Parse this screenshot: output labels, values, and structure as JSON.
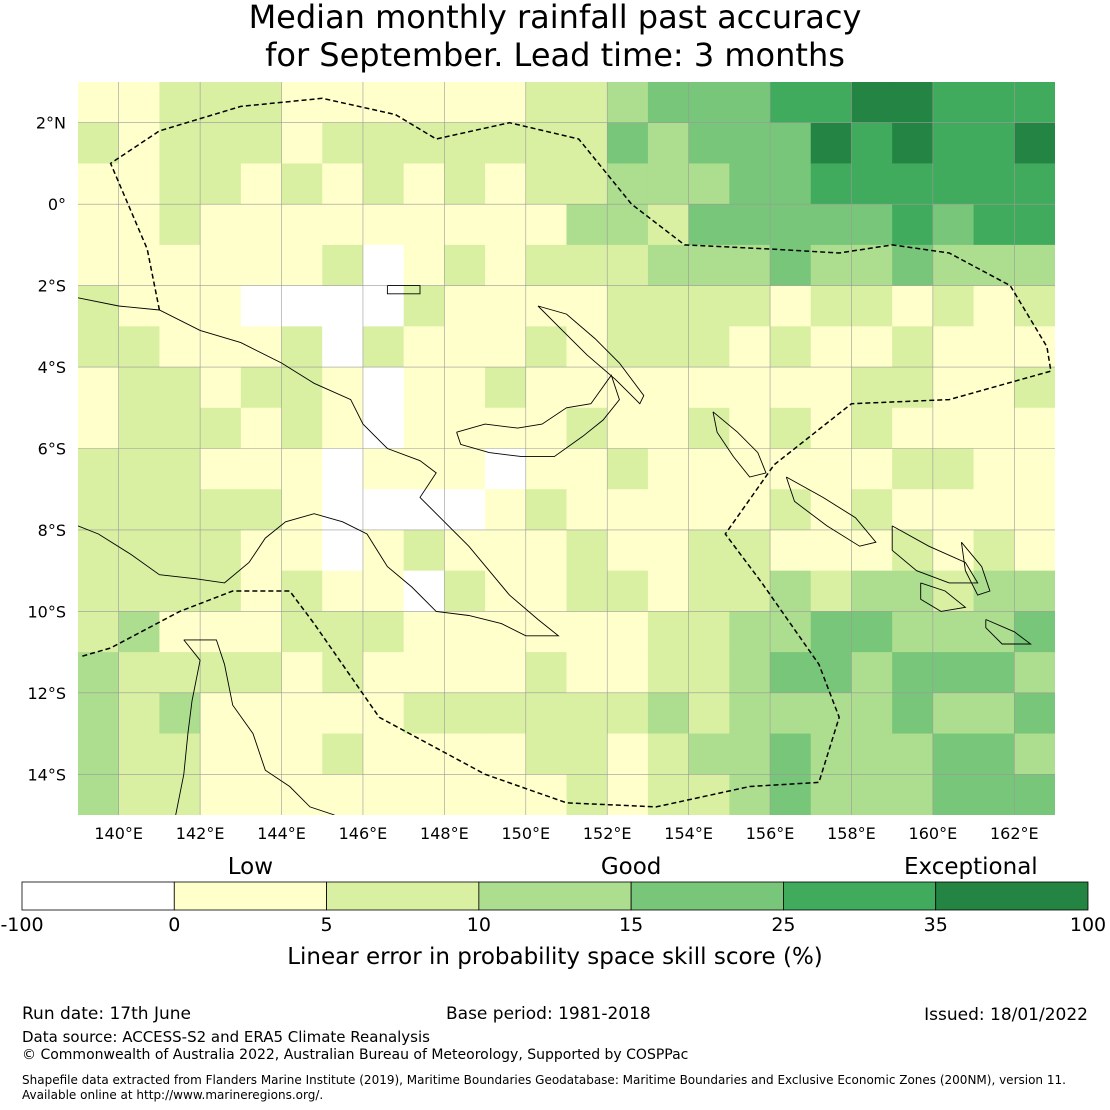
{
  "title_line1": "Median monthly rainfall past accuracy",
  "title_line2": "for September. Lead time: 3 months",
  "map": {
    "lon_min": 139,
    "lon_max": 163,
    "lat_min": -15,
    "lat_max": 3,
    "x_ticks": [
      {
        "value": 140,
        "label": "140°E"
      },
      {
        "value": 142,
        "label": "142°E"
      },
      {
        "value": 144,
        "label": "144°E"
      },
      {
        "value": 146,
        "label": "146°E"
      },
      {
        "value": 148,
        "label": "148°E"
      },
      {
        "value": 150,
        "label": "150°E"
      },
      {
        "value": 152,
        "label": "152°E"
      },
      {
        "value": 154,
        "label": "154°E"
      },
      {
        "value": 156,
        "label": "156°E"
      },
      {
        "value": 158,
        "label": "158°E"
      },
      {
        "value": 160,
        "label": "160°E"
      },
      {
        "value": 162,
        "label": "162°E"
      }
    ],
    "y_ticks": [
      {
        "value": 2,
        "label": "2°N"
      },
      {
        "value": 0,
        "label": "0°"
      },
      {
        "value": -2,
        "label": "2°S"
      },
      {
        "value": -4,
        "label": "4°S"
      },
      {
        "value": -6,
        "label": "6°S"
      },
      {
        "value": -8,
        "label": "8°S"
      },
      {
        "value": -10,
        "label": "10°S"
      },
      {
        "value": -12,
        "label": "12°S"
      },
      {
        "value": -14,
        "label": "14°S"
      }
    ],
    "grid": true,
    "eez_boundary_style": "dashed"
  },
  "colorbar": {
    "bounds": [
      -100,
      0,
      5,
      10,
      15,
      25,
      35,
      100
    ],
    "tick_labels": [
      "-100",
      "0",
      "5",
      "10",
      "15",
      "25",
      "35",
      "100"
    ],
    "colors": [
      "#ffffff",
      "#ffffcc",
      "#d9f0a3",
      "#addd8e",
      "#78c679",
      "#41ab5d",
      "#238443"
    ],
    "qualitative_labels": [
      {
        "label": "Low",
        "value": 2.5
      },
      {
        "label": "Good",
        "value": 15
      },
      {
        "label": "Exceptional",
        "value": 50
      }
    ],
    "label": "Linear error in probability space skill score (%)"
  },
  "footer": {
    "run_date": "Run date: 17th June",
    "base_period": "Base period: 1981-2018",
    "issued": "Issued: 18/01/2022",
    "data_source": "Data source: ACCESS-S2 and ERA5 Climate Reanalysis",
    "copyright": "© Commonwealth of Australia 2022, Australian Bureau of Meteorology, Supported by COSPPac",
    "shapefile_line1": "Shapefile data extracted from Flanders Marine Institute (2019), Maritime Boundaries Geodatabase: Maritime Boundaries and Exclusive Economic Zones (200NM), version 11.",
    "shapefile_line2": "Available online at http://www.marineregions.org/."
  }
}
